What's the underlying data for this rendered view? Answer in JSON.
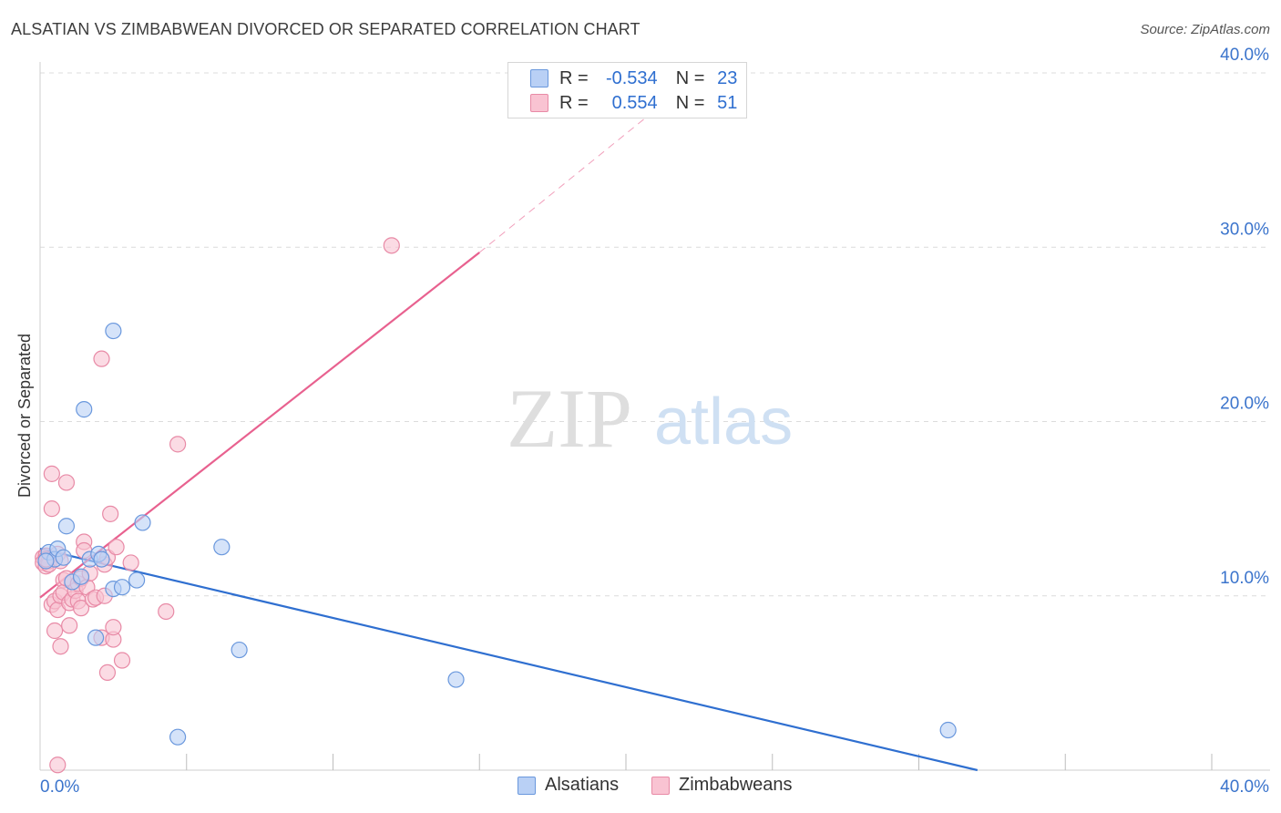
{
  "title": "ALSATIAN VS ZIMBABWEAN DIVORCED OR SEPARATED CORRELATION CHART",
  "source": "Source: ZipAtlas.com",
  "watermark": {
    "zip": "ZIP",
    "atlas": "atlas"
  },
  "legend": {
    "r_label": "R =",
    "n_label": "N =",
    "rows": [
      {
        "r": "-0.534",
        "n": "23",
        "fill": "#b9d0f5",
        "stroke": "#6a98dd"
      },
      {
        "r": "0.554",
        "n": "51",
        "fill": "#f9c3d2",
        "stroke": "#e88aa6"
      }
    ]
  },
  "bottom_legend": [
    "Alsatians",
    "Zimbabweans"
  ],
  "chart_data": {
    "type": "scatter",
    "title": "ALSATIAN VS ZIMBABWEAN DIVORCED OR SEPARATED CORRELATION CHART",
    "xlabel": "",
    "ylabel": "Divorced or Separated",
    "xlim": [
      0,
      0.4
    ],
    "ylim": [
      0,
      0.4
    ],
    "x_tick_labels": [
      "0.0%",
      "40.0%"
    ],
    "y_ticks": [
      0.1,
      0.2,
      0.3,
      0.4
    ],
    "y_tick_labels": [
      "10.0%",
      "20.0%",
      "30.0%",
      "40.0%"
    ],
    "grid": true,
    "series": [
      {
        "name": "Alsatians",
        "color": "#2f6fd0",
        "fill": "#b9d0f5",
        "stroke": "#6a98dd",
        "points": [
          [
            0.003,
            0.125
          ],
          [
            0.005,
            0.121
          ],
          [
            0.006,
            0.127
          ],
          [
            0.008,
            0.122
          ],
          [
            0.009,
            0.14
          ],
          [
            0.011,
            0.108
          ],
          [
            0.014,
            0.111
          ],
          [
            0.015,
            0.207
          ],
          [
            0.017,
            0.121
          ],
          [
            0.019,
            0.076
          ],
          [
            0.02,
            0.124
          ],
          [
            0.021,
            0.121
          ],
          [
            0.025,
            0.104
          ],
          [
            0.025,
            0.252
          ],
          [
            0.028,
            0.105
          ],
          [
            0.033,
            0.109
          ],
          [
            0.035,
            0.142
          ],
          [
            0.047,
            0.019
          ],
          [
            0.062,
            0.128
          ],
          [
            0.068,
            0.069
          ],
          [
            0.142,
            0.052
          ],
          [
            0.31,
            0.023
          ],
          [
            0.002,
            0.12
          ]
        ],
        "trend": {
          "x1": 0.0,
          "y1": 0.127,
          "x2": 0.32,
          "y2": 0.0
        }
      },
      {
        "name": "Zimbabweans",
        "color": "#e8618f",
        "fill": "#f9c3d2",
        "stroke": "#e88aa6",
        "points": [
          [
            0.001,
            0.122
          ],
          [
            0.001,
            0.119
          ],
          [
            0.002,
            0.117
          ],
          [
            0.002,
            0.123
          ],
          [
            0.003,
            0.12
          ],
          [
            0.003,
            0.118
          ],
          [
            0.004,
            0.15
          ],
          [
            0.004,
            0.17
          ],
          [
            0.004,
            0.095
          ],
          [
            0.005,
            0.097
          ],
          [
            0.005,
            0.08
          ],
          [
            0.006,
            0.092
          ],
          [
            0.006,
            0.124
          ],
          [
            0.007,
            0.12
          ],
          [
            0.007,
            0.1
          ],
          [
            0.007,
            0.071
          ],
          [
            0.008,
            0.109
          ],
          [
            0.008,
            0.102
          ],
          [
            0.009,
            0.165
          ],
          [
            0.009,
            0.11
          ],
          [
            0.01,
            0.096
          ],
          [
            0.01,
            0.083
          ],
          [
            0.011,
            0.098
          ],
          [
            0.012,
            0.103
          ],
          [
            0.013,
            0.097
          ],
          [
            0.013,
            0.107
          ],
          [
            0.014,
            0.11
          ],
          [
            0.014,
            0.093
          ],
          [
            0.015,
            0.131
          ],
          [
            0.015,
            0.126
          ],
          [
            0.016,
            0.105
          ],
          [
            0.017,
            0.113
          ],
          [
            0.018,
            0.098
          ],
          [
            0.019,
            0.099
          ],
          [
            0.021,
            0.236
          ],
          [
            0.021,
            0.076
          ],
          [
            0.022,
            0.1
          ],
          [
            0.022,
            0.118
          ],
          [
            0.023,
            0.056
          ],
          [
            0.023,
            0.122
          ],
          [
            0.024,
            0.147
          ],
          [
            0.025,
            0.075
          ],
          [
            0.025,
            0.082
          ],
          [
            0.026,
            0.128
          ],
          [
            0.028,
            0.063
          ],
          [
            0.031,
            0.119
          ],
          [
            0.043,
            0.091
          ],
          [
            0.047,
            0.187
          ],
          [
            0.12,
            0.301
          ],
          [
            0.006,
            0.003
          ],
          [
            0.002,
            0.121
          ]
        ],
        "trend": {
          "x1": 0.0,
          "y1": 0.099,
          "x2": 0.15,
          "y2": 0.297
        },
        "trend_dashed": {
          "x1": 0.15,
          "y1": 0.297,
          "x2": 0.208,
          "y2": 0.376
        }
      }
    ]
  }
}
